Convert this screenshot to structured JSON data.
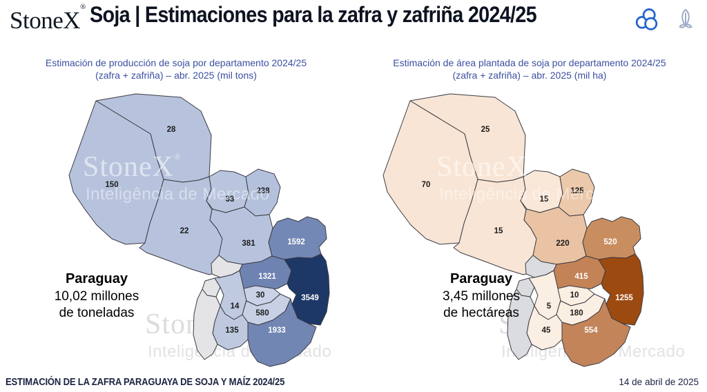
{
  "header": {
    "logo": "StoneX",
    "logo_reg": "®",
    "title": "Soja | Estimaciones para la zafra y zafriña 2024/25",
    "icons": [
      "soybean-icon",
      "corn-icon"
    ],
    "icon_colors": {
      "soybean": "#2465cd",
      "corn": "#9dabc6"
    }
  },
  "watermark": {
    "brand": "StoneX",
    "reg": "®",
    "sub": "Inteligência de Mercado"
  },
  "footer": {
    "left": "ESTIMACIÓN DE LA ZAFRA PARAGUAYA DE SOJA Y MAÍZ 2024/25",
    "right": "14 de abril de 2025"
  },
  "maps": {
    "production": {
      "title_line1": "Estimación de producción de soja por departamento 2024/25",
      "title_line2": "(zafra + zafriña) – abr. 2025 (mil tons)",
      "title_color": "#3b4fa0",
      "summary_title": "Paraguay",
      "summary_line1": "10,02 millones",
      "summary_line2": "de toneladas",
      "summary_title_color": "#2a4a9c",
      "summary_text_color": "#4a68ae",
      "no_data_fill": "#e4e4e6",
      "border_color": "#3a3a42",
      "regions": [
        {
          "id": "alto-paraguay",
          "value": "28",
          "fill": "#b7c3dd",
          "label_color": "#1b1b1b"
        },
        {
          "id": "boqueron",
          "value": "150",
          "fill": "#b7c3dd",
          "label_color": "#1b1b1b"
        },
        {
          "id": "presidente-hayes",
          "value": "22",
          "fill": "#b7c3dd",
          "label_color": "#1b1b1b"
        },
        {
          "id": "concepcion",
          "value": "33",
          "fill": "#b9c5de",
          "label_color": "#1b1b1b"
        },
        {
          "id": "amambay",
          "value": "238",
          "fill": "#b4c1dc",
          "label_color": "#1b1b1b"
        },
        {
          "id": "san-pedro",
          "value": "381",
          "fill": "#b7c3dd",
          "label_color": "#1b1b1b"
        },
        {
          "id": "canindeyu",
          "value": "1592",
          "fill": "#7488b5",
          "label_color": "#ffffff"
        },
        {
          "id": "caaguazu",
          "value": "1321",
          "fill": "#6e83b1",
          "label_color": "#ffffff"
        },
        {
          "id": "alto-parana",
          "value": "3549",
          "fill": "#1d3767",
          "label_color": "#ffffff"
        },
        {
          "id": "guaira",
          "value": "30",
          "fill": "#cad2e7",
          "label_color": "#1b1b1b"
        },
        {
          "id": "paraguari",
          "value": "14",
          "fill": "#bfcae1",
          "label_color": "#1b1b1b"
        },
        {
          "id": "caazapa",
          "value": "580",
          "fill": "#c7d0e5",
          "label_color": "#1b1b1b"
        },
        {
          "id": "misiones",
          "value": "135",
          "fill": "#bec9e0",
          "label_color": "#1b1b1b"
        },
        {
          "id": "itapua",
          "value": "1933",
          "fill": "#7186b3",
          "label_color": "#ffffff"
        }
      ]
    },
    "area": {
      "title_line1": "Estimación de área plantada de soja por departamento 2024/25",
      "title_line2": "(zafra + zafriña) – abr. 2025 (mil ha)",
      "title_color": "#3b4fa0",
      "summary_title": "Paraguay",
      "summary_line1": "3,45 millones",
      "summary_line2": "de hectáreas",
      "summary_title_color": "#8c3c1c",
      "summary_text_color": "#a34f28",
      "no_data_fill": "#dadce0",
      "border_color": "#3a3a42",
      "regions": [
        {
          "id": "alto-paraguay",
          "value": "25",
          "fill": "#f8e5d5",
          "label_color": "#1b1b1b"
        },
        {
          "id": "boqueron",
          "value": "70",
          "fill": "#f8e5d5",
          "label_color": "#1b1b1b"
        },
        {
          "id": "presidente-hayes",
          "value": "15",
          "fill": "#f8e5d5",
          "label_color": "#1b1b1b"
        },
        {
          "id": "concepcion",
          "value": "15",
          "fill": "#f9e7d8",
          "label_color": "#1b1b1b"
        },
        {
          "id": "amambay",
          "value": "125",
          "fill": "#ecc9ab",
          "label_color": "#1b1b1b"
        },
        {
          "id": "san-pedro",
          "value": "220",
          "fill": "#e9c3a3",
          "label_color": "#1b1b1b"
        },
        {
          "id": "canindeyu",
          "value": "520",
          "fill": "#c98e60",
          "label_color": "#ffffff"
        },
        {
          "id": "caaguazu",
          "value": "415",
          "fill": "#c38357",
          "label_color": "#ffffff"
        },
        {
          "id": "alto-parana",
          "value": "1255",
          "fill": "#9d4a10",
          "label_color": "#ffffff"
        },
        {
          "id": "guaira",
          "value": "10",
          "fill": "#fbeee2",
          "label_color": "#1b1b1b"
        },
        {
          "id": "paraguari",
          "value": "5",
          "fill": "#fbeee2",
          "label_color": "#1b1b1b"
        },
        {
          "id": "caazapa",
          "value": "180",
          "fill": "#fbeee2",
          "label_color": "#1b1b1b"
        },
        {
          "id": "misiones",
          "value": "45",
          "fill": "#fbeee2",
          "label_color": "#1b1b1b"
        },
        {
          "id": "itapua",
          "value": "554",
          "fill": "#c3845a",
          "label_color": "#ffffff"
        }
      ]
    }
  },
  "chart_data": [
    {
      "type": "heatmap",
      "subtype": "choropleth-map",
      "geography": "Paraguay departments",
      "title": "Estimación de producción de soja por departamento 2024/25 (zafra + zafriña) – abr. 2025 (mil tons)",
      "unit": "mil tons",
      "values": [
        28,
        150,
        22,
        33,
        238,
        381,
        1592,
        1321,
        3549,
        30,
        14,
        580,
        135,
        1933
      ],
      "no_data_regions": 3,
      "total_annotation": "Paraguay 10,02 millones de toneladas",
      "palette": "light blue #b7c3dd to dark navy #1d3767, gray = no data",
      "legend_position": "none"
    },
    {
      "type": "heatmap",
      "subtype": "choropleth-map",
      "geography": "Paraguay departments",
      "title": "Estimación de área plantada de soja por departamento 2024/25 (zafra + zafriña) – abr. 2025 (mil ha)",
      "unit": "mil ha",
      "values": [
        25,
        70,
        15,
        15,
        125,
        220,
        520,
        415,
        1255,
        10,
        5,
        180,
        45,
        554
      ],
      "no_data_regions": 3,
      "total_annotation": "Paraguay 3,45 millones de hectáreas",
      "palette": "light peach #f8e5d5 to dark brown #9d4a10, gray = no data",
      "legend_position": "none"
    }
  ]
}
